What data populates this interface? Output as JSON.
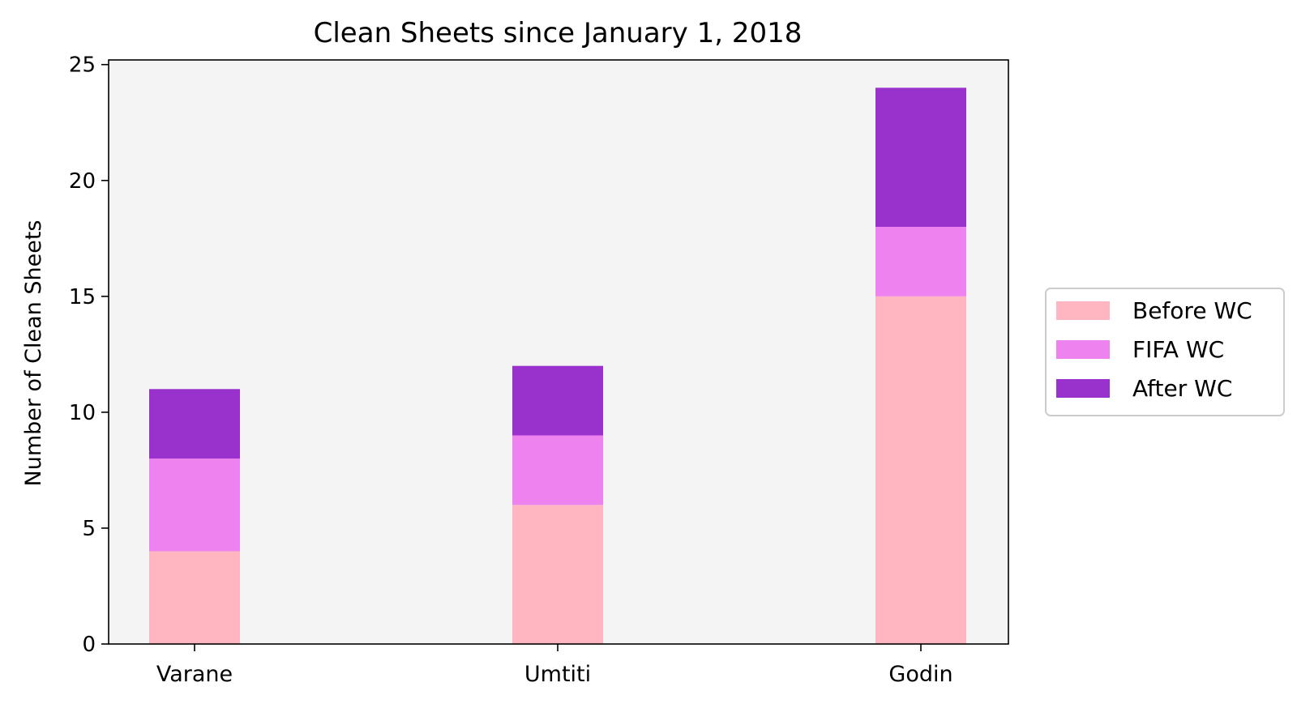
{
  "chart_data": {
    "type": "bar",
    "stacked": true,
    "title": "Clean Sheets since January 1, 2018",
    "xlabel": "",
    "ylabel": "Number of Clean Sheets",
    "categories": [
      "Varane",
      "Umtiti",
      "Godin"
    ],
    "series": [
      {
        "name": "Before WC",
        "values": [
          4,
          6,
          15
        ],
        "color": "#ffb6c1"
      },
      {
        "name": "FIFA WC",
        "values": [
          4,
          3,
          3
        ],
        "color": "#ee82ee"
      },
      {
        "name": "After WC",
        "values": [
          3,
          3,
          6
        ],
        "color": "#9932cc"
      }
    ],
    "ylim": [
      0,
      25.2
    ],
    "yticks": [
      0,
      5,
      10,
      15,
      20,
      25
    ],
    "grid": false,
    "legend_position": "right, outside plot",
    "plot_background": "#f4f4f4"
  }
}
